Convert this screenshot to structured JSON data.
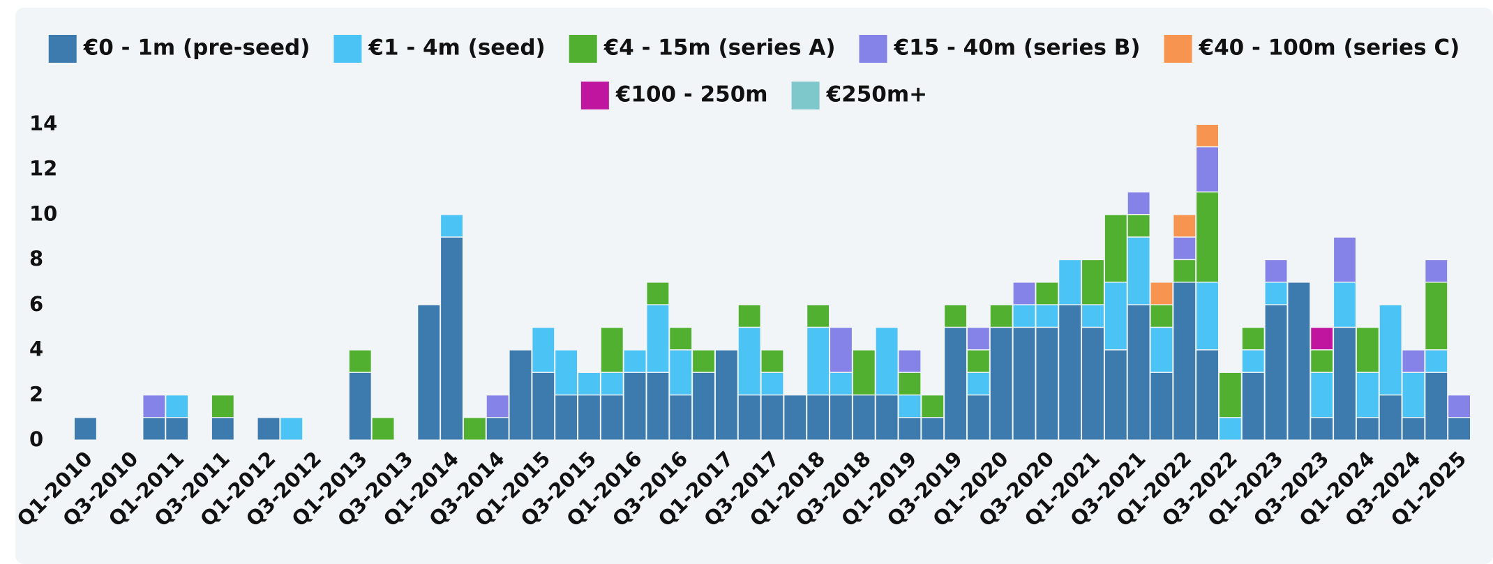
{
  "chart_data": {
    "type": "bar",
    "stacked": true,
    "categories": [
      "Q1-2010",
      null,
      "Q3-2010",
      null,
      "Q1-2011",
      null,
      "Q3-2011",
      null,
      "Q1-2012",
      null,
      "Q3-2012",
      null,
      "Q1-2013",
      null,
      "Q3-2013",
      null,
      "Q1-2014",
      null,
      "Q3-2014",
      null,
      "Q1-2015",
      null,
      "Q3-2015",
      null,
      "Q1-2016",
      null,
      "Q3-2016",
      null,
      "Q1-2017",
      null,
      "Q3-2017",
      null,
      "Q1-2018",
      null,
      "Q3-2018",
      null,
      "Q1-2019",
      null,
      "Q3-2019",
      null,
      "Q1-2020",
      null,
      "Q3-2020",
      null,
      "Q1-2021",
      null,
      "Q3-2021",
      null,
      "Q1-2022",
      null,
      "Q3-2022",
      null,
      "Q1-2023",
      null,
      "Q3-2023",
      null,
      "Q1-2024",
      null,
      "Q3-2024",
      null,
      "Q1-2025"
    ],
    "series": [
      {
        "name": "€0 - 1m (pre-seed)",
        "color": "#3d7aad",
        "values": [
          1,
          0,
          0,
          1,
          1,
          0,
          1,
          0,
          1,
          0,
          0,
          0,
          3,
          0,
          0,
          6,
          9,
          0,
          1,
          4,
          3,
          2,
          2,
          2,
          3,
          3,
          2,
          3,
          4,
          2,
          2,
          2,
          2,
          2,
          2,
          2,
          1,
          1,
          5,
          2,
          5,
          5,
          5,
          6,
          5,
          4,
          6,
          3,
          7,
          4,
          0,
          3,
          6,
          7,
          1,
          5,
          1,
          2,
          1,
          3,
          1
        ]
      },
      {
        "name": "€1 - 4m (seed)",
        "color": "#4bc4f5",
        "values": [
          0,
          0,
          0,
          0,
          1,
          0,
          0,
          0,
          0,
          1,
          0,
          0,
          0,
          0,
          0,
          0,
          1,
          0,
          0,
          0,
          2,
          2,
          1,
          1,
          1,
          3,
          2,
          0,
          0,
          3,
          1,
          0,
          3,
          1,
          0,
          3,
          1,
          0,
          0,
          1,
          0,
          1,
          1,
          2,
          1,
          3,
          3,
          2,
          0,
          3,
          1,
          1,
          1,
          0,
          2,
          2,
          2,
          4,
          2,
          1,
          0
        ]
      },
      {
        "name": "€4 - 15m (series A)",
        "color": "#52b030",
        "values": [
          0,
          0,
          0,
          0,
          0,
          0,
          1,
          0,
          0,
          0,
          0,
          0,
          1,
          1,
          0,
          0,
          0,
          1,
          0,
          0,
          0,
          0,
          0,
          2,
          0,
          1,
          1,
          1,
          0,
          1,
          1,
          0,
          1,
          0,
          2,
          0,
          1,
          1,
          1,
          1,
          1,
          0,
          1,
          0,
          2,
          3,
          1,
          1,
          1,
          4,
          2,
          1,
          0,
          0,
          1,
          0,
          2,
          0,
          0,
          3,
          0
        ]
      },
      {
        "name": "€15 - 40m (series B)",
        "color": "#8582e8",
        "values": [
          0,
          0,
          0,
          1,
          0,
          0,
          0,
          0,
          0,
          0,
          0,
          0,
          0,
          0,
          0,
          0,
          0,
          0,
          1,
          0,
          0,
          0,
          0,
          0,
          0,
          0,
          0,
          0,
          0,
          0,
          0,
          0,
          0,
          2,
          0,
          0,
          1,
          0,
          0,
          1,
          0,
          1,
          0,
          0,
          0,
          0,
          1,
          0,
          1,
          2,
          0,
          0,
          1,
          0,
          0,
          2,
          0,
          0,
          1,
          1,
          1
        ]
      },
      {
        "name": "€40 - 100m (series C)",
        "color": "#f7944f",
        "values": [
          0,
          0,
          0,
          0,
          0,
          0,
          0,
          0,
          0,
          0,
          0,
          0,
          0,
          0,
          0,
          0,
          0,
          0,
          0,
          0,
          0,
          0,
          0,
          0,
          0,
          0,
          0,
          0,
          0,
          0,
          0,
          0,
          0,
          0,
          0,
          0,
          0,
          0,
          0,
          0,
          0,
          0,
          0,
          0,
          0,
          0,
          0,
          1,
          1,
          1,
          0,
          0,
          0,
          0,
          0,
          0,
          0,
          0,
          0,
          0,
          0
        ]
      },
      {
        "name": "€100 - 250m",
        "color": "#c0159e",
        "values": [
          0,
          0,
          0,
          0,
          0,
          0,
          0,
          0,
          0,
          0,
          0,
          0,
          0,
          0,
          0,
          0,
          0,
          0,
          0,
          0,
          0,
          0,
          0,
          0,
          0,
          0,
          0,
          0,
          0,
          0,
          0,
          0,
          0,
          0,
          0,
          0,
          0,
          0,
          0,
          0,
          0,
          0,
          0,
          0,
          0,
          0,
          0,
          0,
          0,
          0,
          0,
          0,
          0,
          0,
          1,
          0,
          0,
          0,
          0,
          0,
          0
        ]
      },
      {
        "name": "€250m+",
        "color": "#7ec8cc",
        "values": [
          0,
          0,
          0,
          0,
          0,
          0,
          0,
          0,
          0,
          0,
          0,
          0,
          0,
          0,
          0,
          0,
          0,
          0,
          0,
          0,
          0,
          0,
          0,
          0,
          0,
          0,
          0,
          0,
          0,
          0,
          0,
          0,
          0,
          0,
          0,
          0,
          0,
          0,
          0,
          0,
          0,
          0,
          0,
          0,
          0,
          0,
          0,
          0,
          0,
          0,
          0,
          0,
          0,
          0,
          0,
          0,
          0,
          0,
          0,
          0,
          0
        ]
      }
    ],
    "ylim": [
      0,
      14
    ],
    "yticks": [
      0,
      2,
      4,
      6,
      8,
      10,
      12,
      14
    ],
    "grid": false,
    "legend": "top"
  }
}
